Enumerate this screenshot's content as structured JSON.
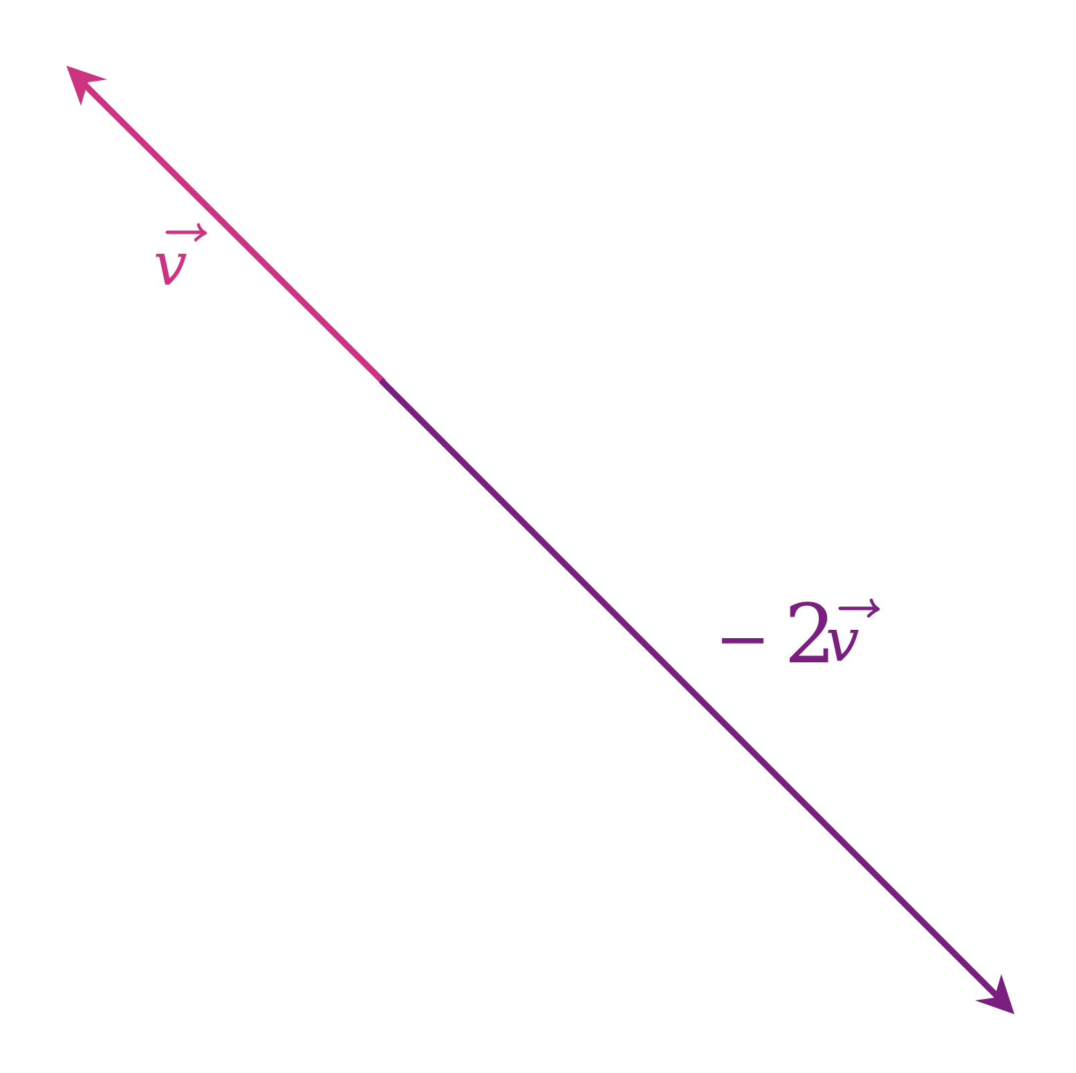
{
  "colors": {
    "vector_v": "#cc3380",
    "vector_neg2v": "#7a1e80",
    "background": "#ffffff"
  },
  "vectors": [
    {
      "id": "v",
      "name": "v",
      "color_key": "vector_v",
      "scale": 1
    },
    {
      "id": "neg2v",
      "name": "v",
      "color_key": "vector_neg2v",
      "scale": -2
    }
  ],
  "labels": {
    "v": {
      "symbol": "v"
    },
    "neg2v": {
      "sign": "−",
      "coefficient": "2",
      "symbol": "v"
    }
  }
}
